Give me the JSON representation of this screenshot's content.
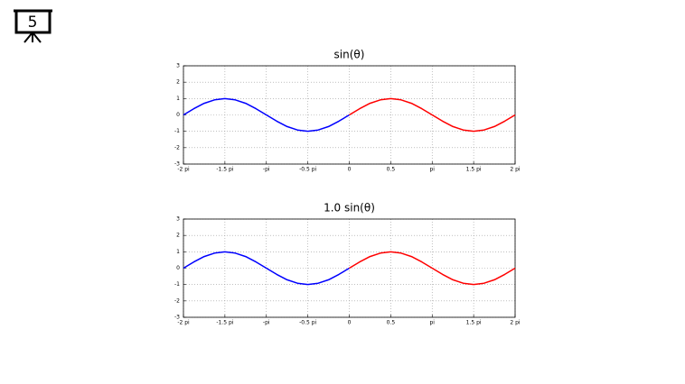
{
  "slide_number": "5",
  "chart_data": [
    {
      "type": "line",
      "title": "sin(θ)",
      "x": [
        -2,
        -1.875,
        -1.75,
        -1.625,
        -1.5,
        -1.375,
        -1.25,
        -1.125,
        -1,
        -0.875,
        -0.75,
        -0.625,
        -0.5,
        -0.375,
        -0.25,
        -0.125,
        0,
        0.125,
        0.25,
        0.375,
        0.5,
        0.625,
        0.75,
        0.875,
        1,
        1.125,
        1.25,
        1.375,
        1.5,
        1.625,
        1.75,
        1.875,
        2
      ],
      "series": [
        {
          "color": "#0000ff",
          "values": [
            0,
            0.38,
            0.71,
            0.92,
            1,
            0.92,
            0.71,
            0.38,
            0,
            -0.38,
            -0.71,
            -0.92,
            -1,
            -0.92,
            -0.71,
            -0.38,
            0,
            null,
            null,
            null,
            null,
            null,
            null,
            null,
            null,
            null,
            null,
            null,
            null,
            null,
            null,
            null,
            null
          ]
        },
        {
          "color": "#ff0000",
          "values": [
            null,
            null,
            null,
            null,
            null,
            null,
            null,
            null,
            null,
            null,
            null,
            null,
            null,
            null,
            null,
            null,
            0,
            0.38,
            0.71,
            0.92,
            1,
            0.92,
            0.71,
            0.38,
            0,
            -0.38,
            -0.71,
            -0.92,
            -1,
            -0.92,
            -0.71,
            -0.38,
            0
          ]
        }
      ],
      "xlim": [
        -2,
        2
      ],
      "xticks": [
        {
          "value": -2,
          "label": "-2 pi"
        },
        {
          "value": -1.5,
          "label": "-1.5 pi"
        },
        {
          "value": -1,
          "label": "-pi"
        },
        {
          "value": -0.5,
          "label": "-0.5 pi"
        },
        0,
        0.5,
        {
          "value": 1,
          "label": "pi"
        },
        {
          "value": 1.5,
          "label": "1.5 pi"
        },
        {
          "value": 2,
          "label": "2 pi"
        }
      ],
      "ylim": [
        -3,
        3
      ],
      "yticks": [
        -3,
        -2,
        -1,
        0,
        1,
        2,
        3
      ],
      "grid": true
    },
    {
      "type": "line",
      "title": "1.0 sin(θ)",
      "x": [
        -2,
        -1.875,
        -1.75,
        -1.625,
        -1.5,
        -1.375,
        -1.25,
        -1.125,
        -1,
        -0.875,
        -0.75,
        -0.625,
        -0.5,
        -0.375,
        -0.25,
        -0.125,
        0,
        0.125,
        0.25,
        0.375,
        0.5,
        0.625,
        0.75,
        0.875,
        1,
        1.125,
        1.25,
        1.375,
        1.5,
        1.625,
        1.75,
        1.875,
        2
      ],
      "series": [
        {
          "color": "#0000ff",
          "values": [
            0,
            0.38,
            0.71,
            0.92,
            1,
            0.92,
            0.71,
            0.38,
            0,
            -0.38,
            -0.71,
            -0.92,
            -1,
            -0.92,
            -0.71,
            -0.38,
            0,
            null,
            null,
            null,
            null,
            null,
            null,
            null,
            null,
            null,
            null,
            null,
            null,
            null,
            null,
            null,
            null
          ]
        },
        {
          "color": "#ff0000",
          "values": [
            null,
            null,
            null,
            null,
            null,
            null,
            null,
            null,
            null,
            null,
            null,
            null,
            null,
            null,
            null,
            null,
            0,
            0.38,
            0.71,
            0.92,
            1,
            0.92,
            0.71,
            0.38,
            0,
            -0.38,
            -0.71,
            -0.92,
            -1,
            -0.92,
            -0.71,
            -0.38,
            0
          ]
        }
      ],
      "xlim": [
        -2,
        2
      ],
      "xticks": [
        {
          "value": -2,
          "label": "-2 pi"
        },
        {
          "value": -1.5,
          "label": "-1.5 pi"
        },
        {
          "value": -1,
          "label": "-pi"
        },
        {
          "value": -0.5,
          "label": "-0.5 pi"
        },
        0,
        0.5,
        {
          "value": 1,
          "label": "pi"
        },
        {
          "value": 1.5,
          "label": "1.5 pi"
        },
        {
          "value": 2,
          "label": "2 pi"
        }
      ],
      "ylim": [
        -3,
        3
      ],
      "yticks": [
        -3,
        -2,
        -1,
        0,
        1,
        2,
        3
      ],
      "grid": true
    }
  ]
}
